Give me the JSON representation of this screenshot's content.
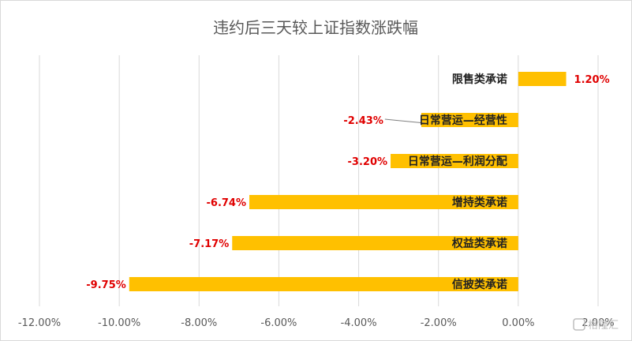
{
  "chart_data": {
    "type": "bar",
    "orientation": "horizontal",
    "title": "违约后三天较上证指数涨跌幅",
    "categories": [
      "限售类承诺",
      "日常营运—经营性",
      "日常营运—利润分配",
      "增持类承诺",
      "权益类承诺",
      "信披类承诺"
    ],
    "values": [
      1.2,
      -2.43,
      -3.2,
      -6.74,
      -7.17,
      -9.75
    ],
    "value_labels": [
      "1.20%",
      "-2.43%",
      "-3.20%",
      "-6.74%",
      "-7.17%",
      "-9.75%"
    ],
    "xlim": [
      -12,
      2
    ],
    "x_ticks": [
      -12,
      -10,
      -8,
      -6,
      -4,
      -2,
      0,
      2
    ],
    "x_tick_labels": [
      "-12.00%",
      "-10.00%",
      "-8.00%",
      "-6.00%",
      "-4.00%",
      "-2.00%",
      "0.00%",
      "2.00%"
    ],
    "grid": true,
    "bar_color": "#FFC000",
    "label_color": "#E00000",
    "grid_color": "#D9D9D9"
  },
  "watermark": "格隆汇"
}
